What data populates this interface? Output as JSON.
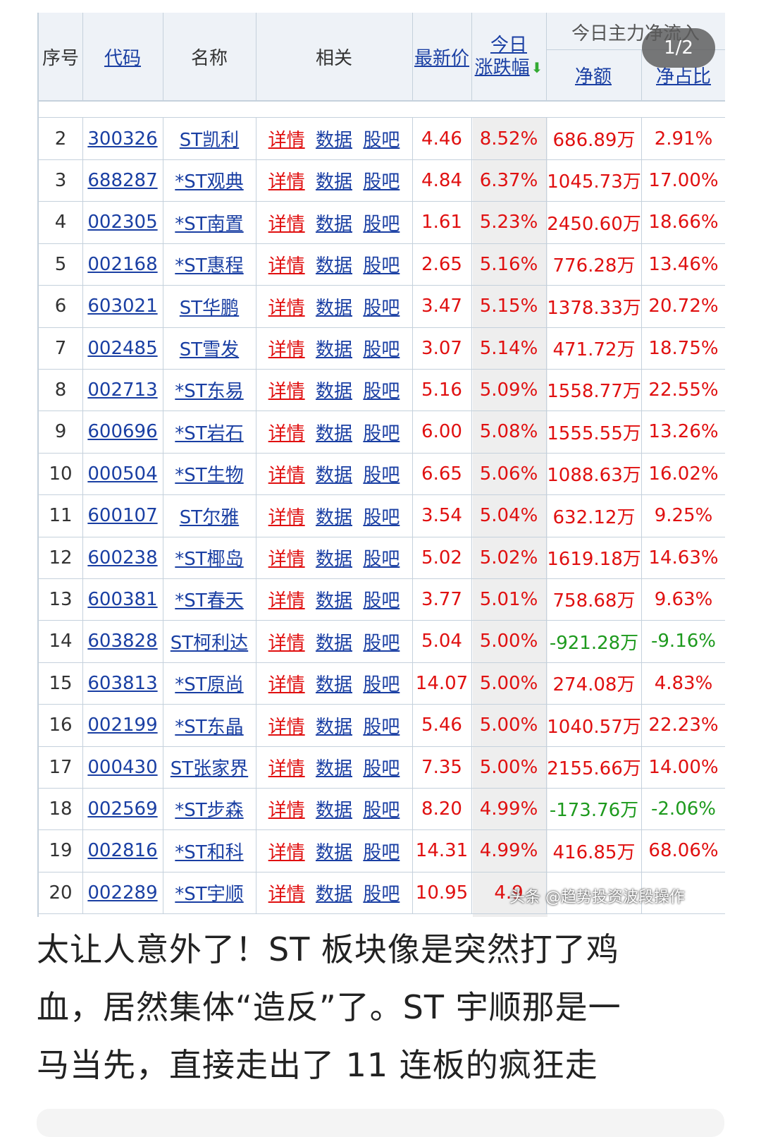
{
  "header": {
    "col_no": "序号",
    "col_code": "代码",
    "col_name": "名称",
    "col_related": "相关",
    "col_price": "最新价",
    "col_change_line1": "今日",
    "col_change_line2": "涨跌幅",
    "col_change_sort_icon": "sort-down-arrow",
    "group_title": "今日主力净流入",
    "col_net_amount": "净额",
    "col_net_ratio": "净占比"
  },
  "pager": "1/2",
  "related_links": [
    "详情",
    "数据",
    "股吧"
  ],
  "rows": [
    {
      "no": "2",
      "code": "300326",
      "name": "ST凯利",
      "price": "4.46",
      "change": "8.52%",
      "net": "686.89万",
      "ratio": "2.91%",
      "flow": "in"
    },
    {
      "no": "3",
      "code": "688287",
      "name": "*ST观典",
      "price": "4.84",
      "change": "6.37%",
      "net": "1045.73万",
      "ratio": "17.00%",
      "flow": "in"
    },
    {
      "no": "4",
      "code": "002305",
      "name": "*ST南置",
      "price": "1.61",
      "change": "5.23%",
      "net": "2450.60万",
      "ratio": "18.66%",
      "flow": "in"
    },
    {
      "no": "5",
      "code": "002168",
      "name": "*ST惠程",
      "price": "2.65",
      "change": "5.16%",
      "net": "776.28万",
      "ratio": "13.46%",
      "flow": "in"
    },
    {
      "no": "6",
      "code": "603021",
      "name": "ST华鹏",
      "price": "3.47",
      "change": "5.15%",
      "net": "1378.33万",
      "ratio": "20.72%",
      "flow": "in"
    },
    {
      "no": "7",
      "code": "002485",
      "name": "ST雪发",
      "price": "3.07",
      "change": "5.14%",
      "net": "471.72万",
      "ratio": "18.75%",
      "flow": "in"
    },
    {
      "no": "8",
      "code": "002713",
      "name": "*ST东易",
      "price": "5.16",
      "change": "5.09%",
      "net": "1558.77万",
      "ratio": "22.55%",
      "flow": "in"
    },
    {
      "no": "9",
      "code": "600696",
      "name": "*ST岩石",
      "price": "6.00",
      "change": "5.08%",
      "net": "1555.55万",
      "ratio": "13.26%",
      "flow": "in"
    },
    {
      "no": "10",
      "code": "000504",
      "name": "*ST生物",
      "price": "6.65",
      "change": "5.06%",
      "net": "1088.63万",
      "ratio": "16.02%",
      "flow": "in"
    },
    {
      "no": "11",
      "code": "600107",
      "name": "ST尔雅",
      "price": "3.54",
      "change": "5.04%",
      "net": "632.12万",
      "ratio": "9.25%",
      "flow": "in"
    },
    {
      "no": "12",
      "code": "600238",
      "name": "*ST椰岛",
      "price": "5.02",
      "change": "5.02%",
      "net": "1619.18万",
      "ratio": "14.63%",
      "flow": "in"
    },
    {
      "no": "13",
      "code": "600381",
      "name": "*ST春天",
      "price": "3.77",
      "change": "5.01%",
      "net": "758.68万",
      "ratio": "9.63%",
      "flow": "in"
    },
    {
      "no": "14",
      "code": "603828",
      "name": "ST柯利达",
      "price": "5.04",
      "change": "5.00%",
      "net": "-921.28万",
      "ratio": "-9.16%",
      "flow": "out"
    },
    {
      "no": "15",
      "code": "603813",
      "name": "*ST原尚",
      "price": "14.07",
      "change": "5.00%",
      "net": "274.08万",
      "ratio": "4.83%",
      "flow": "in"
    },
    {
      "no": "16",
      "code": "002199",
      "name": "*ST东晶",
      "price": "5.46",
      "change": "5.00%",
      "net": "1040.57万",
      "ratio": "22.23%",
      "flow": "in"
    },
    {
      "no": "17",
      "code": "000430",
      "name": "ST张家界",
      "price": "7.35",
      "change": "5.00%",
      "net": "2155.66万",
      "ratio": "14.00%",
      "flow": "in"
    },
    {
      "no": "18",
      "code": "002569",
      "name": "*ST步森",
      "price": "8.20",
      "change": "4.99%",
      "net": "-173.76万",
      "ratio": "-2.06%",
      "flow": "out"
    },
    {
      "no": "19",
      "code": "002816",
      "name": "*ST和科",
      "price": "14.31",
      "change": "4.99%",
      "net": "416.85万",
      "ratio": "68.06%",
      "flow": "in"
    },
    {
      "no": "20",
      "code": "002289",
      "name": "*ST宇顺",
      "price": "10.95",
      "change": "4.9",
      "net": "",
      "ratio": "",
      "flow": "in"
    }
  ],
  "watermark": "头条 @趋势投资波段操作",
  "article": {
    "line1": "太让人意外了！ST 板块像是突然打了鸡",
    "line2": "血，居然集体“造反”了。ST 宇顺那是一",
    "line3": "马当先，直接走出了 11 连板的疯狂走"
  },
  "colors": {
    "up": "#e01010",
    "down": "#1e9a1e",
    "link": "#1a3fa3",
    "header_bg": "#eef2f7",
    "grid": "#c5d1dc"
  }
}
